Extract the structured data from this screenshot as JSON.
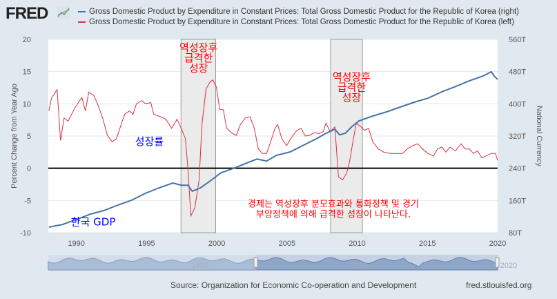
{
  "header": {
    "logo": "FRED",
    "legend": [
      {
        "label": "Gross Domestic Product by Expenditure in Constant Prices: Total Gross Domestic Product for the Republic of Korea (right)",
        "color": "#4572a7"
      },
      {
        "label": "Gross Domestic Product by Expenditure in Constant Prices: Total Gross Domestic Product for the Republic of Korea (left)",
        "color": "#d8303f"
      }
    ]
  },
  "chart_data": {
    "type": "line",
    "ylabel": "Percent Change from Year Ago",
    "y2label": "National Currency",
    "xlim": [
      1988,
      2020
    ],
    "ylim": [
      -10,
      20
    ],
    "y2lim": [
      80,
      560
    ],
    "xticks": [
      "1990",
      "1995",
      "2000",
      "2005",
      "2010",
      "2015",
      "2020"
    ],
    "yticks": [
      "20",
      "15",
      "10",
      "5",
      "0",
      "-5",
      "-10"
    ],
    "y2ticks": [
      "560T",
      "480T",
      "400T",
      "320T",
      "240T",
      "160T",
      "80T"
    ],
    "highlights": [
      [
        1997.45,
        1999.92
      ],
      [
        2008.1,
        2010.37
      ]
    ],
    "annotations": [
      {
        "lines": [
          "역성장후",
          "급격한",
          "성장"
        ],
        "x": 1998.7,
        "y": 18.2,
        "color": "#ff0000"
      },
      {
        "lines": [
          "역성장후",
          "급격한",
          "성장"
        ],
        "x": 2009.6,
        "y": 13.6,
        "color": "#ff0000"
      },
      {
        "lines": [
          "성장률"
        ],
        "x": 1995.2,
        "y": 3.6,
        "color": "#0000ff"
      },
      {
        "lines": [
          "한국 GDP"
        ],
        "x": 1991.2,
        "y": -8.9,
        "color": "#0000ff"
      },
      {
        "lines": [
          "경제는 역성장후 분모효과와 통화정책 및 경기",
          "부양정책에 의해 급격한 성장이 나타난다."
        ],
        "x": 2008.3,
        "y": -6.0,
        "color": "#ff0000"
      }
    ],
    "series": [
      {
        "name": "GDP growth (left)",
        "axis": "left",
        "color": "#d8303f",
        "points": [
          [
            1988.04,
            8.9
          ],
          [
            1988.23,
            10.9
          ],
          [
            1988.63,
            12.2
          ],
          [
            1988.87,
            4.3
          ],
          [
            1989.12,
            7.8
          ],
          [
            1989.41,
            7.3
          ],
          [
            1989.9,
            9.4
          ],
          [
            1990.39,
            11
          ],
          [
            1990.64,
            8.9
          ],
          [
            1990.88,
            11.8
          ],
          [
            1991.23,
            11.3
          ],
          [
            1991.47,
            10.2
          ],
          [
            1991.87,
            7.8
          ],
          [
            1992.21,
            5.1
          ],
          [
            1992.55,
            4.1
          ],
          [
            1992.85,
            4.6
          ],
          [
            1993.19,
            6.8
          ],
          [
            1993.44,
            8.4
          ],
          [
            1993.78,
            8.9
          ],
          [
            1994.03,
            8.4
          ],
          [
            1994.27,
            10
          ],
          [
            1994.66,
            10.5
          ],
          [
            1994.91,
            10
          ],
          [
            1995.3,
            10.2
          ],
          [
            1995.5,
            8.4
          ],
          [
            1995.99,
            8
          ],
          [
            1996.38,
            7.6
          ],
          [
            1996.78,
            6.2
          ],
          [
            1997.17,
            7.6
          ],
          [
            1997.46,
            6.2
          ],
          [
            1997.76,
            4.6
          ],
          [
            1997.95,
            -0.2
          ],
          [
            1998.15,
            -7.4
          ],
          [
            1998.44,
            -6.1
          ],
          [
            1998.74,
            -1.8
          ],
          [
            1998.94,
            6.8
          ],
          [
            1999.23,
            12.3
          ],
          [
            1999.52,
            13.4
          ],
          [
            1999.72,
            13.7
          ],
          [
            1999.97,
            12.6
          ],
          [
            2000.21,
            9.1
          ],
          [
            2000.46,
            9.1
          ],
          [
            2000.7,
            6.2
          ],
          [
            2001.05,
            5.5
          ],
          [
            2001.39,
            5.1
          ],
          [
            2001.68,
            6.8
          ],
          [
            2002.03,
            7.8
          ],
          [
            2002.37,
            8
          ],
          [
            2002.67,
            6.2
          ],
          [
            2002.96,
            3
          ],
          [
            2003.26,
            2.3
          ],
          [
            2003.55,
            2.3
          ],
          [
            2003.84,
            4.1
          ],
          [
            2004.14,
            6.2
          ],
          [
            2004.33,
            6.8
          ],
          [
            2004.63,
            4.6
          ],
          [
            2004.97,
            3.5
          ],
          [
            2005.32,
            4.8
          ],
          [
            2005.71,
            5.9
          ],
          [
            2006,
            6.2
          ],
          [
            2006.3,
            5
          ],
          [
            2006.59,
            5.1
          ],
          [
            2006.94,
            5.5
          ],
          [
            2007.28,
            5.4
          ],
          [
            2007.58,
            5.7
          ],
          [
            2007.77,
            7
          ],
          [
            2008.07,
            5.7
          ],
          [
            2008.41,
            6.4
          ],
          [
            2008.66,
            -1.3
          ],
          [
            2008.95,
            -1.8
          ],
          [
            2009.24,
            -0.8
          ],
          [
            2009.44,
            0.9
          ],
          [
            2009.73,
            4.6
          ],
          [
            2009.93,
            7
          ],
          [
            2010.23,
            6.5
          ],
          [
            2010.52,
            5.9
          ],
          [
            2010.81,
            6.2
          ],
          [
            2011.11,
            4.1
          ],
          [
            2011.5,
            3
          ],
          [
            2011.89,
            2.5
          ],
          [
            2012.34,
            2.3
          ],
          [
            2012.83,
            2.3
          ],
          [
            2013.22,
            2.3
          ],
          [
            2013.56,
            3
          ],
          [
            2013.96,
            3.5
          ],
          [
            2014.3,
            3.8
          ],
          [
            2014.64,
            3
          ],
          [
            2015.04,
            2.3
          ],
          [
            2015.43,
            1.9
          ],
          [
            2015.72,
            3
          ],
          [
            2016.02,
            3.3
          ],
          [
            2016.31,
            2.5
          ],
          [
            2016.61,
            3.3
          ],
          [
            2017,
            2.7
          ],
          [
            2017.39,
            3.8
          ],
          [
            2017.69,
            3
          ],
          [
            2017.98,
            3
          ],
          [
            2018.28,
            2.3
          ],
          [
            2018.57,
            2.7
          ],
          [
            2018.87,
            1.6
          ],
          [
            2019.16,
            1.9
          ],
          [
            2019.55,
            2.3
          ],
          [
            2019.85,
            2.3
          ],
          [
            2020,
            1.2
          ]
        ]
      },
      {
        "name": "GDP level (right)",
        "axis": "right",
        "color": "#4572a7",
        "points": [
          [
            1988.04,
            93.7
          ],
          [
            1989.02,
            100.6
          ],
          [
            1990,
            112.6
          ],
          [
            1990.98,
            126
          ],
          [
            1991.96,
            135
          ],
          [
            1992.95,
            148.6
          ],
          [
            1993.93,
            160.6
          ],
          [
            1994.91,
            177.7
          ],
          [
            1995.89,
            191.4
          ],
          [
            1996.87,
            203.4
          ],
          [
            1997.46,
            198
          ],
          [
            1997.95,
            198
          ],
          [
            1998.25,
            183
          ],
          [
            1998.84,
            191.4
          ],
          [
            1999.33,
            203.4
          ],
          [
            2000.31,
            229
          ],
          [
            2001.29,
            241
          ],
          [
            2002.27,
            255
          ],
          [
            2002.86,
            263
          ],
          [
            2003.55,
            258
          ],
          [
            2004.24,
            272
          ],
          [
            2005.22,
            280.5
          ],
          [
            2006.2,
            297.7
          ],
          [
            2007.18,
            314.8
          ],
          [
            2007.67,
            325
          ],
          [
            2008.41,
            337
          ],
          [
            2008.75,
            323
          ],
          [
            2009.15,
            327
          ],
          [
            2009.64,
            344
          ],
          [
            2010.13,
            357.7
          ],
          [
            2011.11,
            369.7
          ],
          [
            2012.09,
            380
          ],
          [
            2013.07,
            392
          ],
          [
            2014.06,
            404
          ],
          [
            2015.04,
            414
          ],
          [
            2016.02,
            429.7
          ],
          [
            2017,
            443
          ],
          [
            2017.98,
            457
          ],
          [
            2018.96,
            469
          ],
          [
            2019.55,
            479.6
          ],
          [
            2019.75,
            469
          ],
          [
            2020,
            460.5
          ]
        ]
      }
    ]
  },
  "navigator": {
    "labels": [
      "1980",
      "2000",
      "2020"
    ]
  },
  "footer": {
    "source": "Source: Organization for Economic Co-operation and Development",
    "site": "fred.stlouisfed.org"
  }
}
